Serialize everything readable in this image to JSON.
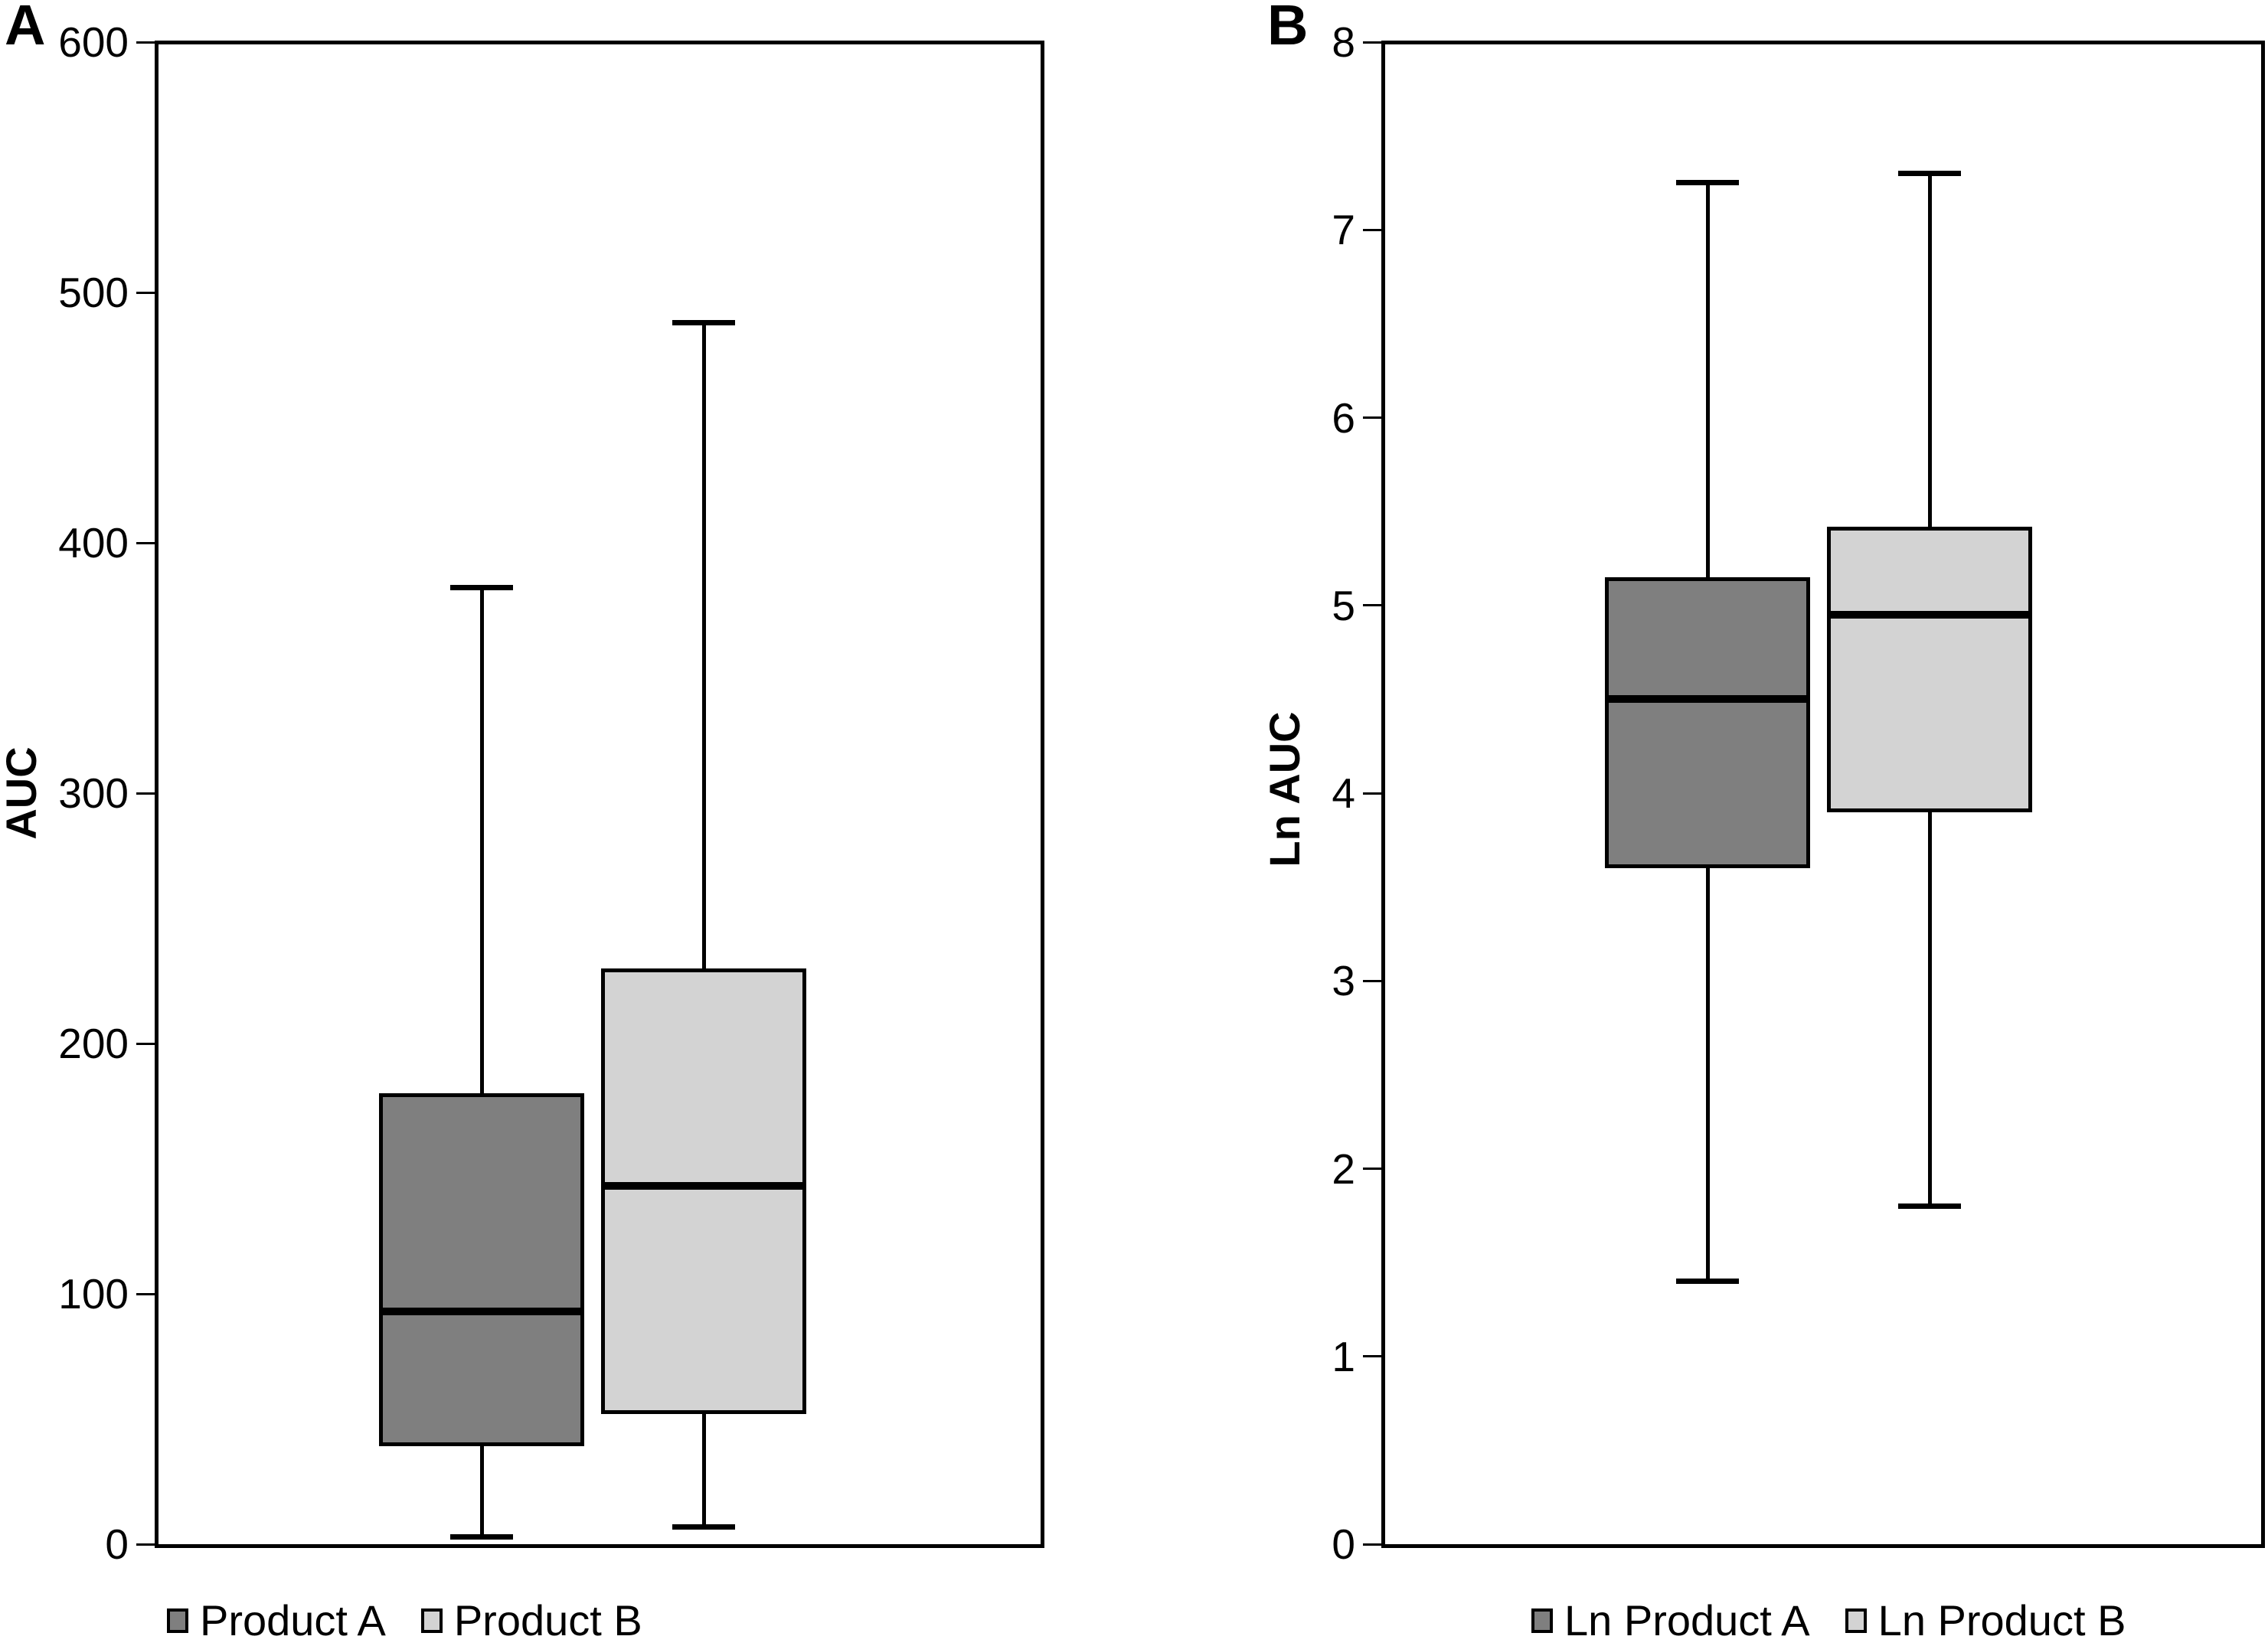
{
  "figure_title": "",
  "chart_data": [
    {
      "type": "box",
      "panel_label": "A",
      "ylabel": "AUC",
      "ylim": [
        0,
        600
      ],
      "yticks": [
        0,
        100,
        200,
        300,
        400,
        500,
        600
      ],
      "grid": false,
      "legend_position": "bottom",
      "series": [
        {
          "name": "Product A",
          "fill_color": "#7f7f7f",
          "whisker_low": 3,
          "q1": 39,
          "median": 93,
          "q3": 180,
          "whisker_high": 382
        },
        {
          "name": "Product B",
          "fill_color": "#d3d3d3",
          "whisker_low": 7,
          "q1": 52,
          "median": 143,
          "q3": 230,
          "whisker_high": 488
        }
      ]
    },
    {
      "type": "box",
      "panel_label": "B",
      "ylabel": "Ln AUC",
      "ylim": [
        0,
        8
      ],
      "yticks": [
        0,
        1,
        2,
        3,
        4,
        5,
        6,
        7,
        8
      ],
      "grid": false,
      "legend_position": "bottom",
      "series": [
        {
          "name": "Ln Product A",
          "fill_color": "#7f7f7f",
          "whisker_low": 1.4,
          "q1": 3.6,
          "median": 4.5,
          "q3": 5.15,
          "whisker_high": 7.25
        },
        {
          "name": "Ln Product B",
          "fill_color": "#d3d3d3",
          "whisker_low": 1.8,
          "q1": 3.9,
          "median": 4.95,
          "q3": 5.42,
          "whisker_high": 7.3
        }
      ]
    }
  ],
  "colors": {
    "line": "#000000",
    "background": "#ffffff",
    "dark_box": "#7f7f7f",
    "light_box": "#d3d3d3"
  }
}
